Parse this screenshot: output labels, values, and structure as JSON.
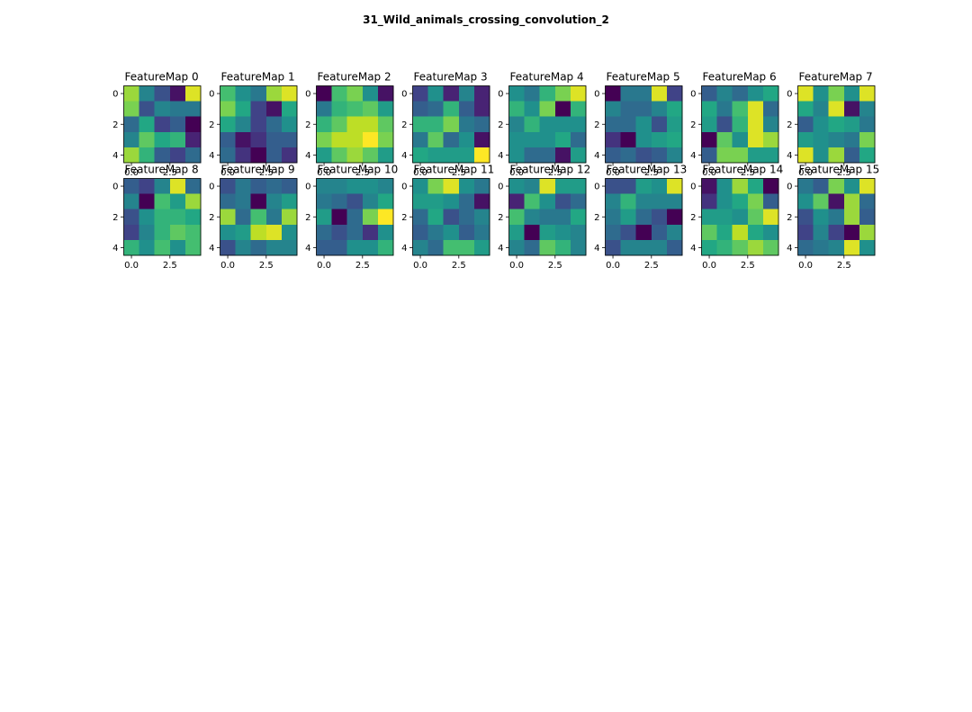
{
  "figure_title": "31_Wild_animals_crossing_convolution_2",
  "chart_data": {
    "type": "heatmap",
    "title": "31_Wild_animals_crossing_convolution_2",
    "colormap": "viridis",
    "xticks": [
      "0.0",
      "2.5"
    ],
    "yticks": [
      "0",
      "2",
      "4"
    ],
    "xlim": [
      -0.5,
      4.5
    ],
    "ylim": [
      4.5,
      -0.5
    ],
    "grid": false,
    "panels": [
      {
        "title": "FeatureMap 0",
        "values": [
          [
            0.85,
            0.45,
            0.25,
            0.05,
            0.95
          ],
          [
            0.8,
            0.25,
            0.45,
            0.4,
            0.4
          ],
          [
            0.35,
            0.6,
            0.2,
            0.3,
            0.0
          ],
          [
            0.45,
            0.75,
            0.6,
            0.65,
            0.1
          ],
          [
            0.85,
            0.65,
            0.3,
            0.2,
            0.35
          ]
        ]
      },
      {
        "title": "FeatureMap 1",
        "values": [
          [
            0.7,
            0.5,
            0.4,
            0.85,
            0.95
          ],
          [
            0.8,
            0.6,
            0.2,
            0.05,
            0.6
          ],
          [
            0.6,
            0.45,
            0.2,
            0.35,
            0.5
          ],
          [
            0.3,
            0.05,
            0.15,
            0.3,
            0.3
          ],
          [
            0.35,
            0.15,
            0.0,
            0.3,
            0.15
          ]
        ]
      },
      {
        "title": "FeatureMap 2",
        "values": [
          [
            0.0,
            0.7,
            0.8,
            0.5,
            0.05
          ],
          [
            0.4,
            0.65,
            0.7,
            0.75,
            0.55
          ],
          [
            0.65,
            0.75,
            0.9,
            0.9,
            0.75
          ],
          [
            0.8,
            0.9,
            0.9,
            1.0,
            0.8
          ],
          [
            0.55,
            0.75,
            0.85,
            0.75,
            0.55
          ]
        ]
      },
      {
        "title": "FeatureMap 3",
        "values": [
          [
            0.2,
            0.5,
            0.1,
            0.45,
            0.1
          ],
          [
            0.3,
            0.35,
            0.65,
            0.3,
            0.1
          ],
          [
            0.65,
            0.65,
            0.8,
            0.4,
            0.35
          ],
          [
            0.4,
            0.75,
            0.35,
            0.5,
            0.05
          ],
          [
            0.6,
            0.55,
            0.55,
            0.55,
            1.0
          ]
        ]
      },
      {
        "title": "FeatureMap 4",
        "values": [
          [
            0.5,
            0.4,
            0.65,
            0.8,
            0.95
          ],
          [
            0.65,
            0.5,
            0.8,
            0.0,
            0.65
          ],
          [
            0.45,
            0.65,
            0.5,
            0.5,
            0.5
          ],
          [
            0.5,
            0.5,
            0.5,
            0.6,
            0.35
          ],
          [
            0.5,
            0.35,
            0.35,
            0.05,
            0.55
          ]
        ]
      },
      {
        "title": "FeatureMap 5",
        "values": [
          [
            0.0,
            0.4,
            0.4,
            0.95,
            0.2
          ],
          [
            0.45,
            0.35,
            0.35,
            0.45,
            0.6
          ],
          [
            0.35,
            0.35,
            0.5,
            0.25,
            0.55
          ],
          [
            0.15,
            0.0,
            0.5,
            0.55,
            0.6
          ],
          [
            0.3,
            0.35,
            0.25,
            0.3,
            0.45
          ]
        ]
      },
      {
        "title": "FeatureMap 6",
        "values": [
          [
            0.3,
            0.45,
            0.35,
            0.5,
            0.6
          ],
          [
            0.6,
            0.4,
            0.7,
            0.95,
            0.35
          ],
          [
            0.55,
            0.25,
            0.65,
            0.95,
            0.45
          ],
          [
            0.0,
            0.75,
            0.5,
            0.95,
            0.85
          ],
          [
            0.3,
            0.8,
            0.8,
            0.55,
            0.55
          ]
        ]
      },
      {
        "title": "FeatureMap 7",
        "values": [
          [
            0.95,
            0.5,
            0.8,
            0.5,
            0.95
          ],
          [
            0.6,
            0.45,
            0.95,
            0.05,
            0.45
          ],
          [
            0.3,
            0.5,
            0.6,
            0.55,
            0.4
          ],
          [
            0.55,
            0.5,
            0.45,
            0.4,
            0.8
          ],
          [
            0.95,
            0.5,
            0.85,
            0.3,
            0.6
          ]
        ]
      },
      {
        "title": "FeatureMap 8",
        "values": [
          [
            0.3,
            0.2,
            0.45,
            0.95,
            0.35
          ],
          [
            0.45,
            0.0,
            0.7,
            0.55,
            0.85
          ],
          [
            0.25,
            0.5,
            0.65,
            0.65,
            0.6
          ],
          [
            0.2,
            0.45,
            0.65,
            0.75,
            0.7
          ],
          [
            0.65,
            0.5,
            0.7,
            0.5,
            0.7
          ]
        ]
      },
      {
        "title": "FeatureMap 9",
        "values": [
          [
            0.25,
            0.4,
            0.3,
            0.35,
            0.3
          ],
          [
            0.35,
            0.4,
            0.0,
            0.45,
            0.55
          ],
          [
            0.85,
            0.35,
            0.7,
            0.4,
            0.85
          ],
          [
            0.5,
            0.55,
            0.9,
            0.95,
            0.5
          ],
          [
            0.25,
            0.45,
            0.35,
            0.45,
            0.45
          ]
        ]
      },
      {
        "title": "FeatureMap 10",
        "values": [
          [
            0.45,
            0.45,
            0.5,
            0.5,
            0.45
          ],
          [
            0.4,
            0.35,
            0.25,
            0.45,
            0.6
          ],
          [
            0.55,
            0.0,
            0.35,
            0.8,
            1.0
          ],
          [
            0.35,
            0.25,
            0.35,
            0.15,
            0.5
          ],
          [
            0.3,
            0.3,
            0.5,
            0.5,
            0.65
          ]
        ]
      },
      {
        "title": "FeatureMap 11",
        "values": [
          [
            0.5,
            0.8,
            0.95,
            0.5,
            0.4
          ],
          [
            0.55,
            0.55,
            0.5,
            0.35,
            0.05
          ],
          [
            0.35,
            0.6,
            0.25,
            0.35,
            0.45
          ],
          [
            0.3,
            0.4,
            0.5,
            0.3,
            0.4
          ],
          [
            0.45,
            0.35,
            0.7,
            0.7,
            0.55
          ]
        ]
      },
      {
        "title": "FeatureMap 12",
        "values": [
          [
            0.5,
            0.45,
            0.95,
            0.55,
            0.55
          ],
          [
            0.1,
            0.7,
            0.5,
            0.25,
            0.35
          ],
          [
            0.7,
            0.45,
            0.4,
            0.4,
            0.6
          ],
          [
            0.55,
            0.0,
            0.55,
            0.5,
            0.45
          ],
          [
            0.45,
            0.35,
            0.75,
            0.65,
            0.45
          ]
        ]
      },
      {
        "title": "FeatureMap 13",
        "values": [
          [
            0.25,
            0.25,
            0.55,
            0.5,
            0.95
          ],
          [
            0.45,
            0.65,
            0.45,
            0.45,
            0.45
          ],
          [
            0.4,
            0.55,
            0.35,
            0.25,
            0.0
          ],
          [
            0.35,
            0.25,
            0.0,
            0.3,
            0.45
          ],
          [
            0.25,
            0.45,
            0.45,
            0.45,
            0.3
          ]
        ]
      },
      {
        "title": "FeatureMap 14",
        "values": [
          [
            0.05,
            0.5,
            0.85,
            0.6,
            0.0
          ],
          [
            0.15,
            0.5,
            0.6,
            0.8,
            0.3
          ],
          [
            0.55,
            0.55,
            0.5,
            0.75,
            0.95
          ],
          [
            0.75,
            0.6,
            0.9,
            0.6,
            0.5
          ],
          [
            0.6,
            0.65,
            0.75,
            0.85,
            0.75
          ]
        ]
      },
      {
        "title": "FeatureMap 15",
        "values": [
          [
            0.4,
            0.3,
            0.8,
            0.5,
            0.95
          ],
          [
            0.5,
            0.75,
            0.05,
            0.85,
            0.35
          ],
          [
            0.25,
            0.5,
            0.4,
            0.85,
            0.3
          ],
          [
            0.2,
            0.45,
            0.2,
            0.0,
            0.85
          ],
          [
            0.35,
            0.4,
            0.45,
            0.95,
            0.5
          ]
        ]
      }
    ]
  }
}
